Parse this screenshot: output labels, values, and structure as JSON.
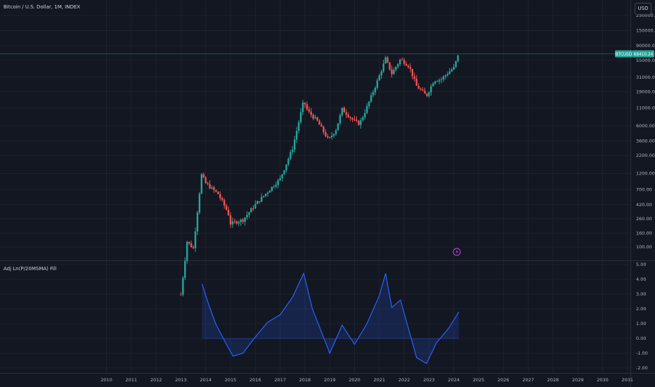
{
  "header": {
    "title": "Bitcoin / U.S. Dollar, 1M, INDEX",
    "currency_button": "USD"
  },
  "price_label": {
    "symbol": "BTCUSD",
    "value": "68410.24"
  },
  "indicator": {
    "title": "Adj Ln(P/20MSMA) Fill"
  },
  "colors": {
    "background": "#131722",
    "grid": "#1e222d",
    "up": "#26a69a",
    "down": "#ef5350",
    "line": "#2962ff",
    "price_line": "#26a69a",
    "text": "#b2b5be"
  },
  "chart_data": [
    {
      "type": "candlestick",
      "title": "Bitcoin / U.S. Dollar, 1M, INDEX",
      "yscale": "log",
      "ylim": [
        60,
        250000
      ],
      "xlim": [
        2010,
        2031
      ],
      "price_ticks": [
        "250000.00",
        "150000.00",
        "90000.00",
        "55000.00",
        "31000.00",
        "19000.00",
        "11000.00",
        "6000.00",
        "3600.00",
        "2200.00",
        "1200.00",
        "700.00",
        "420.00",
        "260.00",
        "160.00",
        "100.00"
      ],
      "x_ticks": [
        "2010",
        "2011",
        "2012",
        "2013",
        "2014",
        "2015",
        "2016",
        "2017",
        "2018",
        "2019",
        "2020",
        "2021",
        "2022",
        "2023",
        "2024",
        "2025",
        "2026",
        "2027",
        "2028",
        "2029",
        "2030",
        "2031"
      ],
      "approx_monthly_close": [
        {
          "x": 2013.0,
          "close": 20
        },
        {
          "x": 2013.25,
          "close": 120
        },
        {
          "x": 2013.5,
          "close": 95
        },
        {
          "x": 2013.83,
          "close": 1150
        },
        {
          "x": 2014.0,
          "close": 860
        },
        {
          "x": 2014.5,
          "close": 600
        },
        {
          "x": 2014.9,
          "close": 320
        },
        {
          "x": 2015.0,
          "close": 220
        },
        {
          "x": 2015.5,
          "close": 250
        },
        {
          "x": 2016.0,
          "close": 420
        },
        {
          "x": 2016.5,
          "close": 650
        },
        {
          "x": 2017.0,
          "close": 1000
        },
        {
          "x": 2017.5,
          "close": 2800
        },
        {
          "x": 2017.95,
          "close": 14000
        },
        {
          "x": 2018.1,
          "close": 10000
        },
        {
          "x": 2018.5,
          "close": 7000
        },
        {
          "x": 2018.95,
          "close": 3700
        },
        {
          "x": 2019.25,
          "close": 5300
        },
        {
          "x": 2019.5,
          "close": 10500
        },
        {
          "x": 2019.95,
          "close": 7200
        },
        {
          "x": 2020.2,
          "close": 6400
        },
        {
          "x": 2020.5,
          "close": 11300
        },
        {
          "x": 2020.95,
          "close": 29000
        },
        {
          "x": 2021.25,
          "close": 58000
        },
        {
          "x": 2021.5,
          "close": 35000
        },
        {
          "x": 2021.85,
          "close": 57000
        },
        {
          "x": 2022.2,
          "close": 45000
        },
        {
          "x": 2022.5,
          "close": 23000
        },
        {
          "x": 2022.9,
          "close": 16500
        },
        {
          "x": 2023.2,
          "close": 28000
        },
        {
          "x": 2023.5,
          "close": 29000
        },
        {
          "x": 2023.8,
          "close": 37000
        },
        {
          "x": 2024.0,
          "close": 42500
        },
        {
          "x": 2024.2,
          "close": 68410.24
        }
      ]
    },
    {
      "type": "area",
      "title": "Adj Ln(P/20MSMA) Fill",
      "ylim": [
        -2.0,
        5.0
      ],
      "y_ticks": [
        "5.00",
        "4.00",
        "3.00",
        "2.00",
        "1.00",
        "0.00",
        "-1.00",
        "-2.00"
      ],
      "series": [
        {
          "values": [
            {
              "x": 2013.85,
              "y": 3.7
            },
            {
              "x": 2014.1,
              "y": 2.4
            },
            {
              "x": 2014.4,
              "y": 1.0
            },
            {
              "x": 2014.9,
              "y": -0.6
            },
            {
              "x": 2015.1,
              "y": -1.2
            },
            {
              "x": 2015.5,
              "y": -1.0
            },
            {
              "x": 2016.0,
              "y": 0.1
            },
            {
              "x": 2016.5,
              "y": 1.1
            },
            {
              "x": 2017.0,
              "y": 1.6
            },
            {
              "x": 2017.5,
              "y": 2.8
            },
            {
              "x": 2017.95,
              "y": 4.4
            },
            {
              "x": 2018.3,
              "y": 2.0
            },
            {
              "x": 2018.7,
              "y": 0.3
            },
            {
              "x": 2019.0,
              "y": -1.0
            },
            {
              "x": 2019.5,
              "y": 0.9
            },
            {
              "x": 2020.0,
              "y": -0.4
            },
            {
              "x": 2020.5,
              "y": 1.0
            },
            {
              "x": 2021.0,
              "y": 2.9
            },
            {
              "x": 2021.25,
              "y": 4.4
            },
            {
              "x": 2021.5,
              "y": 2.1
            },
            {
              "x": 2021.85,
              "y": 2.6
            },
            {
              "x": 2022.2,
              "y": 0.5
            },
            {
              "x": 2022.5,
              "y": -1.3
            },
            {
              "x": 2022.9,
              "y": -1.7
            },
            {
              "x": 2023.3,
              "y": -0.3
            },
            {
              "x": 2023.8,
              "y": 0.7
            },
            {
              "x": 2024.2,
              "y": 1.8
            }
          ]
        }
      ]
    }
  ]
}
